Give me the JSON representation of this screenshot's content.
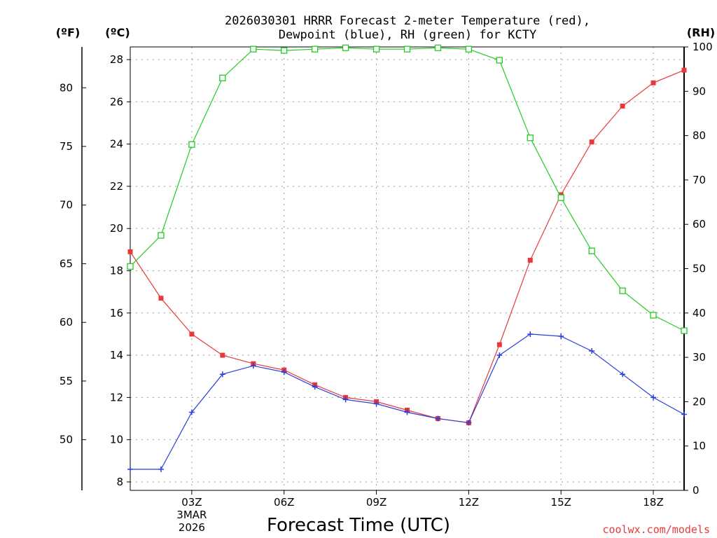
{
  "chart_data": {
    "type": "line",
    "title_lines": [
      "2026030301 HRRR Forecast 2-meter Temperature (red),",
      "Dewpoint (blue), RH (green) for KCTY"
    ],
    "units": {
      "fahrenheit": "(ºF)",
      "celsius": "(ºC)",
      "rh": "(RH)"
    },
    "xlabel": "Forecast Time (UTC)",
    "x_hours": [
      1,
      2,
      3,
      4,
      5,
      6,
      7,
      8,
      9,
      10,
      11,
      12,
      13,
      14,
      15,
      16,
      17,
      18,
      19
    ],
    "xlim": [
      1,
      19
    ],
    "x_ticks": [
      {
        "hour": 3,
        "lines": [
          "03Z",
          "3MAR",
          "2026"
        ]
      },
      {
        "hour": 6,
        "lines": [
          "06Z"
        ]
      },
      {
        "hour": 9,
        "lines": [
          "09Z"
        ]
      },
      {
        "hour": 12,
        "lines": [
          "12Z"
        ]
      },
      {
        "hour": 15,
        "lines": [
          "15Z"
        ]
      },
      {
        "hour": 18,
        "lines": [
          "18Z"
        ]
      }
    ],
    "y_left_celsius": {
      "min": 7.6,
      "max": 28.6,
      "ticks": [
        "8",
        "10",
        "12",
        "14",
        "16",
        "18",
        "20",
        "22",
        "24",
        "26",
        "28"
      ]
    },
    "y_far_left_fahrenheit": {
      "ticks": [
        "50",
        "55",
        "60",
        "65",
        "70",
        "75",
        "80"
      ]
    },
    "y_right_rh": {
      "min": 0,
      "max": 100,
      "ticks": [
        "0",
        "10",
        "20",
        "30",
        "40",
        "50",
        "60",
        "70",
        "80",
        "90",
        "100"
      ]
    },
    "grid": true,
    "series": [
      {
        "name": "Temperature",
        "unit": "C",
        "color": "#e8393a",
        "marker": "filled-square",
        "values": [
          18.9,
          16.7,
          15.0,
          14.0,
          13.6,
          13.3,
          12.6,
          12.0,
          11.8,
          11.4,
          11.0,
          10.8,
          14.5,
          18.5,
          21.6,
          24.1,
          25.8,
          26.9,
          27.5
        ]
      },
      {
        "name": "Dewpoint",
        "unit": "C",
        "color": "#2b3fdc",
        "marker": "plus",
        "values": [
          8.6,
          8.6,
          11.3,
          13.1,
          13.5,
          13.2,
          12.5,
          11.9,
          11.7,
          11.3,
          11.0,
          10.8,
          14.0,
          15.0,
          14.9,
          14.2,
          13.1,
          12.0,
          11.2
        ]
      },
      {
        "name": "RH",
        "unit": "%",
        "color": "#22cc22",
        "marker": "open-square",
        "values": [
          50.5,
          57.5,
          78,
          93,
          99.5,
          99.2,
          99.5,
          99.8,
          99.5,
          99.5,
          99.8,
          99.5,
          97,
          79.5,
          66,
          54,
          45,
          39.5,
          36
        ]
      }
    ]
  },
  "credit": "coolwx.com/models"
}
